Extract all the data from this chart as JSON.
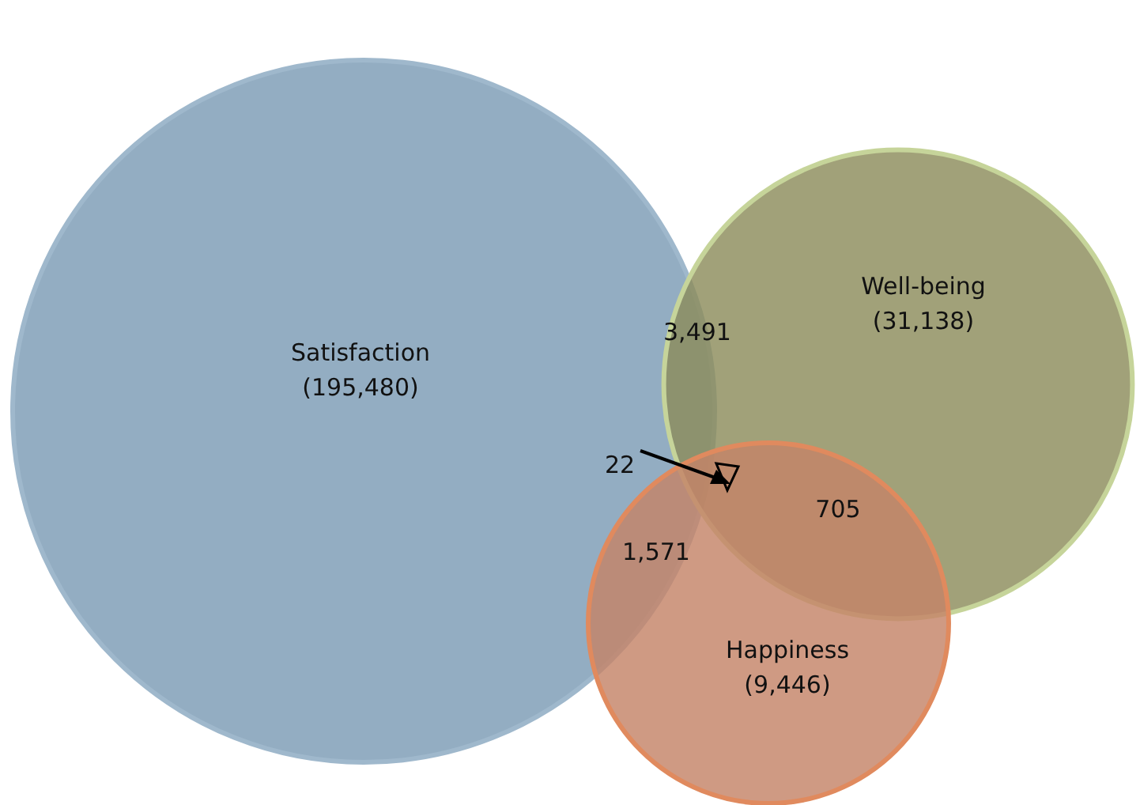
{
  "chart_data": {
    "type": "other",
    "categories": [
      "Satisfaction",
      "Well-being",
      "Happiness"
    ],
    "values": [
      195480,
      31138,
      9446
    ],
    "value_labels": [
      "(195,480)",
      "(31,138)",
      "(9,446)"
    ],
    "colors": [
      "#7b9bb5",
      "#8c8c5c",
      "#c48468"
    ],
    "annotations": [
      "3,491",
      "22",
      "705",
      "1,571"
    ]
  }
}
